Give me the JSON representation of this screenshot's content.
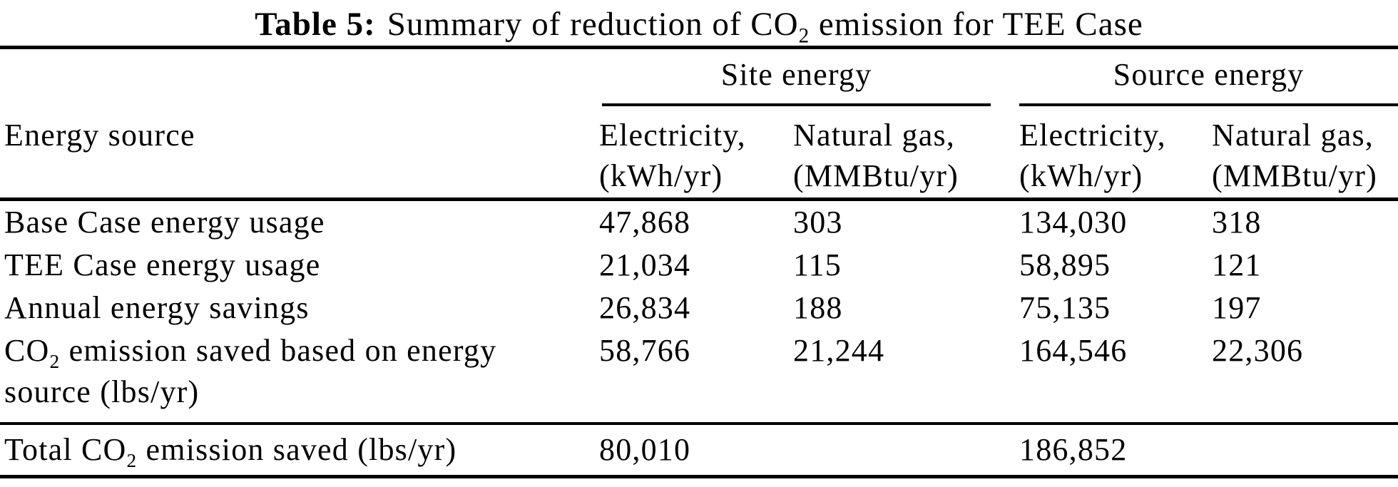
{
  "title": {
    "prefix_bold": "Table 5:",
    "text_pre_sub": "Summary of reduction of CO",
    "subscript": "2",
    "text_post_sub": " emission for TEE Case"
  },
  "table": {
    "spanner_headers": [
      {
        "label": "Site energy"
      },
      {
        "label": "Source energy"
      }
    ],
    "stub_header": "Energy source",
    "column_headers": [
      {
        "line1": "Electricity,",
        "line2": "(kWh/yr)"
      },
      {
        "line1": "Natural gas,",
        "line2": "(MMBtu/yr)"
      },
      {
        "line1": "Electricity,",
        "line2": "(kWh/yr)"
      },
      {
        "line1": "Natural gas,",
        "line2": "(MMBtu/yr)"
      }
    ],
    "rows": [
      {
        "label": "Base Case energy usage",
        "values": [
          "47,868",
          "303",
          "134,030",
          "318"
        ]
      },
      {
        "label": "TEE Case energy usage",
        "values": [
          "21,034",
          "115",
          "58,895",
          "121"
        ]
      },
      {
        "label": "Annual energy savings",
        "values": [
          "26,834",
          "188",
          "75,135",
          "197"
        ]
      },
      {
        "label_pre_sub": "CO",
        "label_subscript": "2",
        "label_line1_rest": " emission saved based on energy",
        "label_line2": "source (lbs/yr)",
        "values": [
          "58,766",
          "21,244",
          "164,546",
          "22,306"
        ]
      }
    ],
    "total_row": {
      "label_pre_sub": "Total CO",
      "label_subscript": "2",
      "label_post_sub": " emission saved (lbs/yr)",
      "values": [
        "80,010",
        "",
        "186,852",
        ""
      ]
    }
  }
}
